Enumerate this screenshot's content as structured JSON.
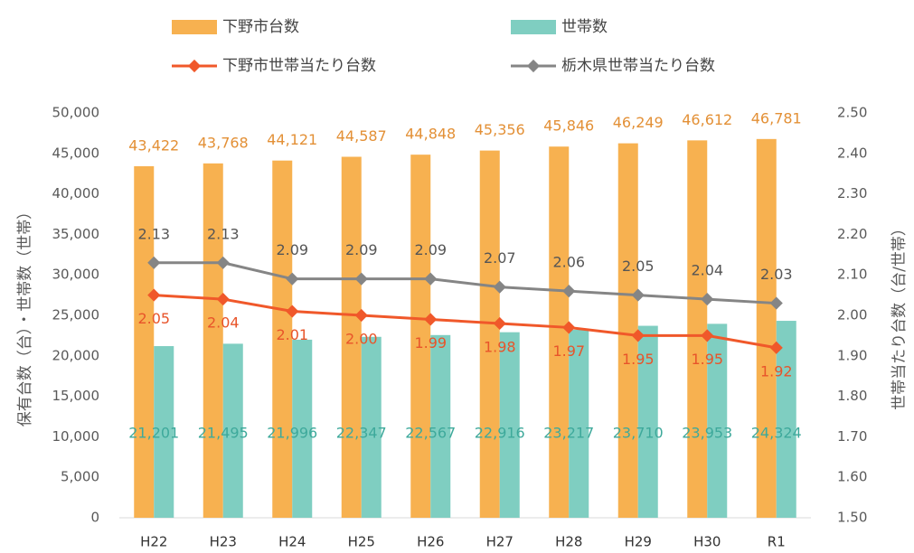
{
  "chart_data": {
    "type": "bar",
    "categories": [
      "H22",
      "H23",
      "H24",
      "H25",
      "H26",
      "H27",
      "H28",
      "H29",
      "H30",
      "R1"
    ],
    "ylabel": "保有台数（台）・世帯数（世帯）",
    "y2label": "世帯当たり台数（台/世帯）",
    "ylim": [
      0,
      50000
    ],
    "yticks": [
      0,
      {
        "value": 5000,
        "label": "5,000"
      },
      {
        "value": 10000,
        "label": "10,000"
      },
      {
        "value": 15000,
        "label": "15,000"
      },
      {
        "value": 20000,
        "label": "20,000"
      },
      {
        "value": 25000,
        "label": "25,000"
      },
      {
        "value": 30000,
        "label": "30,000"
      },
      {
        "value": 35000,
        "label": "35,000"
      },
      {
        "value": 40000,
        "label": "40,000"
      },
      {
        "value": 45000,
        "label": "45,000"
      },
      {
        "value": 50000,
        "label": "50,000"
      }
    ],
    "y2lim": [
      1.5,
      2.5
    ],
    "y2ticks": [
      {
        "value": 1.5,
        "label": "1.50"
      },
      {
        "value": 1.6,
        "label": "1.60"
      },
      {
        "value": 1.7,
        "label": "1.70"
      },
      {
        "value": 1.8,
        "label": "1.80"
      },
      {
        "value": 1.9,
        "label": "1.90"
      },
      {
        "value": 2.0,
        "label": "2.00"
      },
      {
        "value": 2.1,
        "label": "2.10"
      },
      {
        "value": 2.2,
        "label": "2.20"
      },
      {
        "value": 2.3,
        "label": "2.30"
      },
      {
        "value": 2.4,
        "label": "2.40"
      },
      {
        "value": 2.5,
        "label": "2.50"
      }
    ],
    "legend": "top",
    "series": [
      {
        "name": "下野市台数",
        "type": "bar",
        "color": "#f7b150",
        "values": [
          43422,
          43768,
          44121,
          44587,
          44848,
          45356,
          45846,
          46249,
          46612,
          46781
        ],
        "value_labels": [
          "43,422",
          "43,768",
          "44,121",
          "44,587",
          "44,848",
          "45,356",
          "45,846",
          "46,249",
          "46,612",
          "46,781"
        ]
      },
      {
        "name": "世帯数",
        "type": "bar",
        "color": "#7fcec1",
        "values": [
          21201,
          21495,
          21996,
          22347,
          22567,
          22916,
          23217,
          23710,
          23953,
          24324
        ],
        "value_labels": [
          "21,201",
          "21,495",
          "21,996",
          "22,347",
          "22,567",
          "22,916",
          "23,217",
          "23,710",
          "23,953",
          "24,324"
        ]
      },
      {
        "name": "下野市世帯当たり台数",
        "type": "line",
        "axis": "y2",
        "color": "#f0582a",
        "values": [
          2.05,
          2.04,
          2.01,
          2.0,
          1.99,
          1.98,
          1.97,
          1.95,
          1.95,
          1.92
        ],
        "value_labels": [
          "2.05",
          "2.04",
          "2.01",
          "2.00",
          "1.99",
          "1.98",
          "1.97",
          "1.95",
          "1.95",
          "1.92"
        ]
      },
      {
        "name": "栃木県世帯当たり台数",
        "type": "line",
        "axis": "y2",
        "color": "#858585",
        "values": [
          2.13,
          2.13,
          2.09,
          2.09,
          2.09,
          2.07,
          2.06,
          2.05,
          2.04,
          2.03
        ],
        "value_labels": [
          "2.13",
          "2.13",
          "2.09",
          "2.09",
          "2.09",
          "2.07",
          "2.06",
          "2.05",
          "2.04",
          "2.03"
        ]
      }
    ]
  }
}
